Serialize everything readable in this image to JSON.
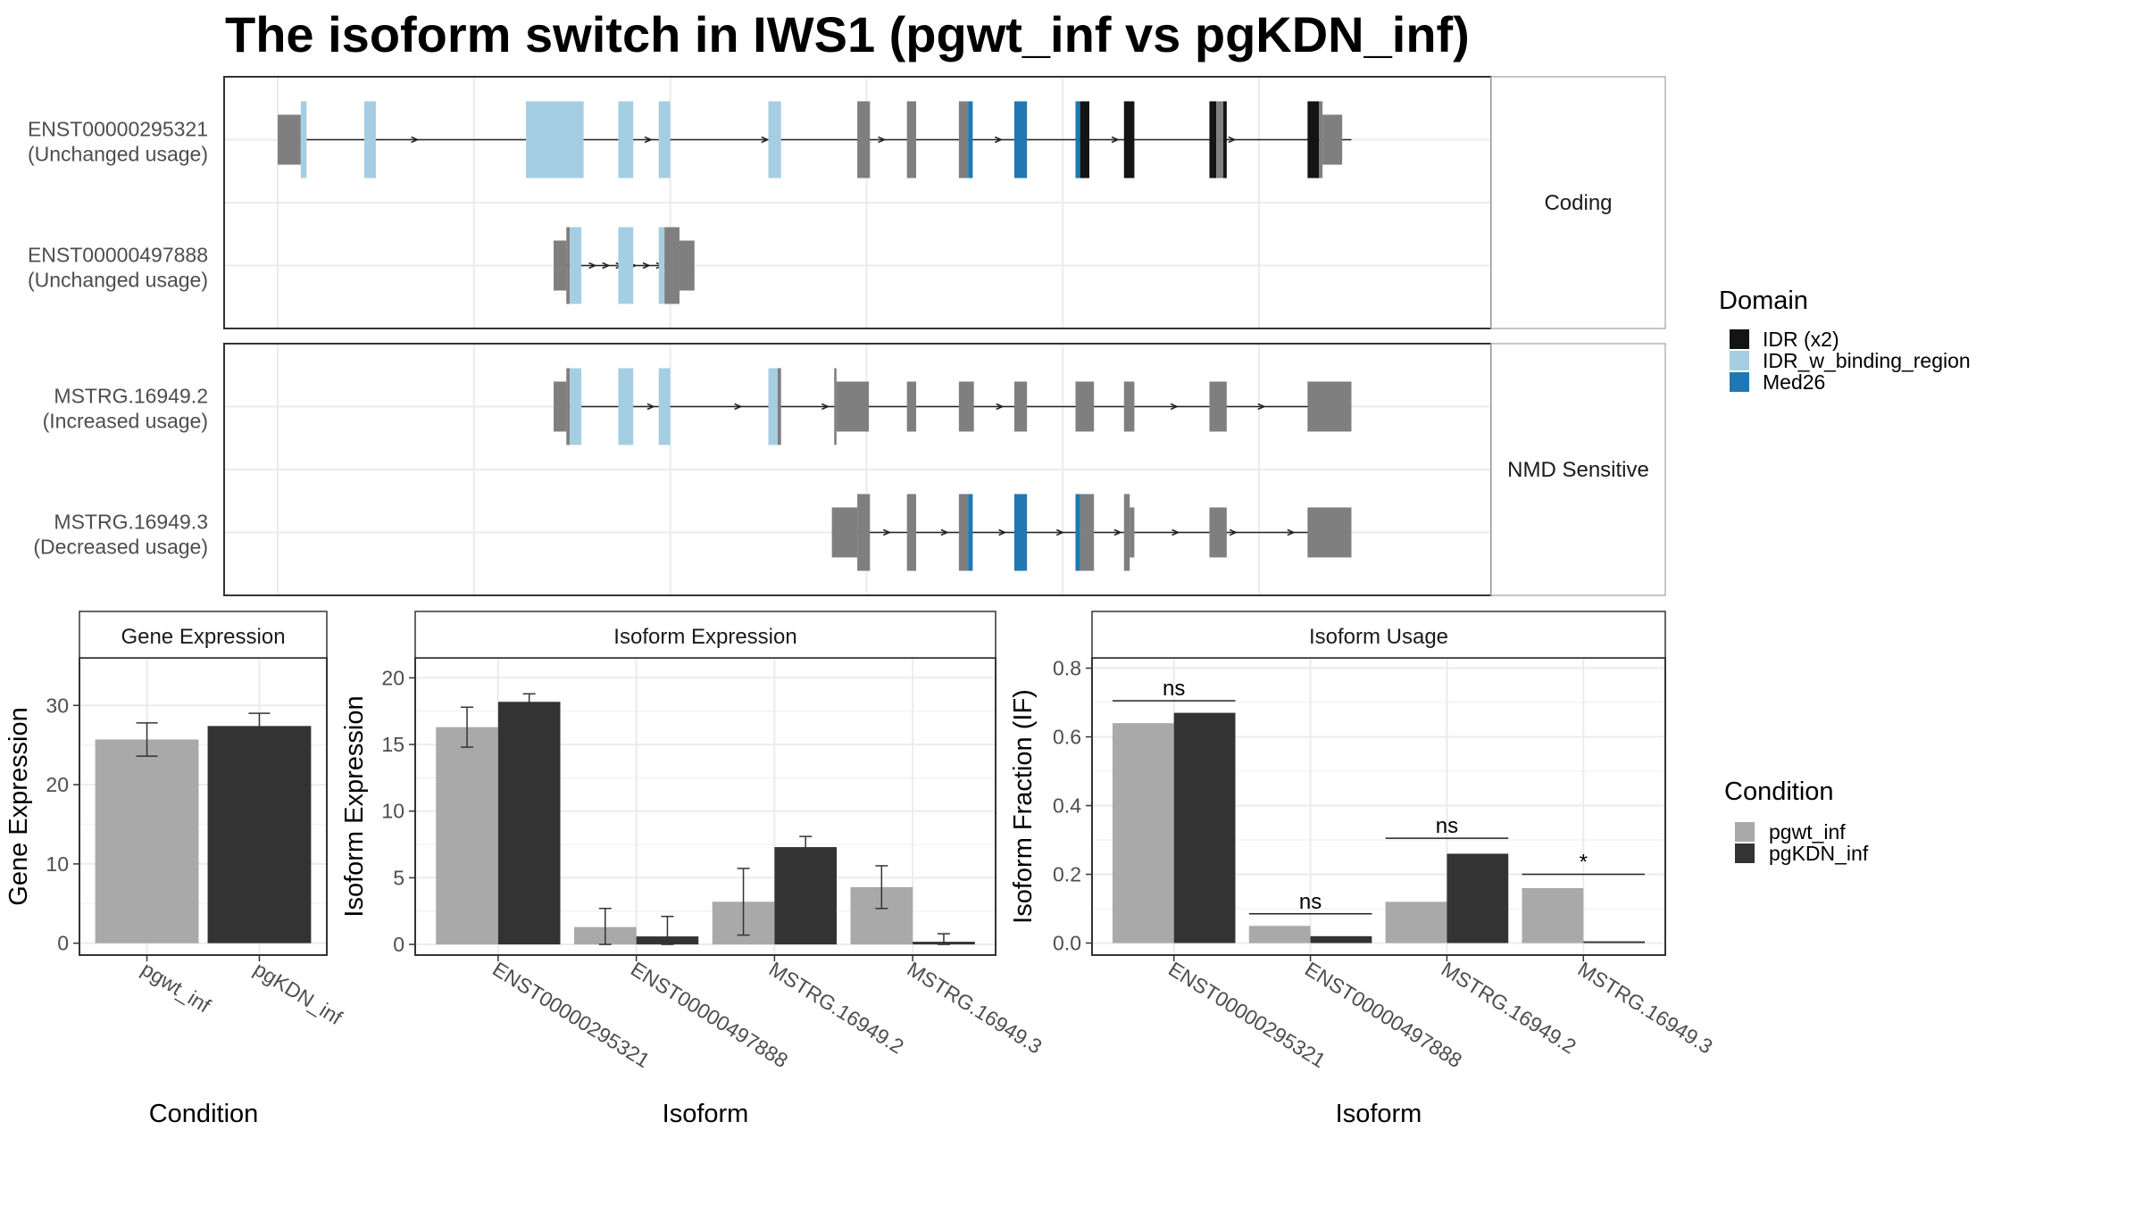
{
  "title": "The isoform switch in IWS1 (pgwt_inf vs pgKDN_inf)",
  "colors": {
    "utr": "#7f7f7f",
    "cds": "#7f7f7f",
    "IDR (x2)": "#141414",
    "IDR_w_binding_region": "#a6cee3",
    "Med26": "#1f78b4",
    "pgwt_inf": "#a9a9a9",
    "pgKDN_inf": "#333333",
    "panel_border": "#333333",
    "strip_border": "#b3b3b3",
    "grid": "#ebebeb"
  },
  "structure": {
    "facets": [
      {
        "label": "Coding",
        "transcripts": [
          {
            "name": "ENST00000295321",
            "usage": "(Unchanged usage)",
            "line": [
              0.02,
              0.93
            ],
            "blocks": [
              {
                "s": 0.0,
                "e": 0.02,
                "h": "u",
                "d": null
              },
              {
                "s": 0.02,
                "e": 0.025,
                "h": "c",
                "d": "IDR_w_binding_region"
              },
              {
                "s": 0.075,
                "e": 0.085,
                "h": "c",
                "d": "IDR_w_binding_region"
              },
              {
                "s": 0.215,
                "e": 0.265,
                "h": "c",
                "d": "IDR_w_binding_region"
              },
              {
                "s": 0.295,
                "e": 0.308,
                "h": "c",
                "d": "IDR_w_binding_region"
              },
              {
                "s": 0.33,
                "e": 0.34,
                "h": "c",
                "d": "IDR_w_binding_region"
              },
              {
                "s": 0.425,
                "e": 0.436,
                "h": "c",
                "d": "IDR_w_binding_region"
              },
              {
                "s": 0.502,
                "e": 0.513,
                "h": "c",
                "d": null
              },
              {
                "s": 0.545,
                "e": 0.553,
                "h": "c",
                "d": null
              },
              {
                "s": 0.59,
                "e": 0.598,
                "h": "c",
                "d": null
              },
              {
                "s": 0.598,
                "e": 0.602,
                "h": "c",
                "d": "Med26"
              },
              {
                "s": 0.638,
                "e": 0.649,
                "h": "c",
                "d": "Med26"
              },
              {
                "s": 0.691,
                "e": 0.695,
                "h": "c",
                "d": "Med26"
              },
              {
                "s": 0.695,
                "e": 0.703,
                "h": "c",
                "d": "IDR (x2)"
              },
              {
                "s": 0.733,
                "e": 0.742,
                "h": "c",
                "d": "IDR (x2)"
              },
              {
                "s": 0.807,
                "e": 0.813,
                "h": "c",
                "d": "IDR (x2)"
              },
              {
                "s": 0.813,
                "e": 0.819,
                "h": "c",
                "d": null
              },
              {
                "s": 0.819,
                "e": 0.822,
                "h": "c",
                "d": "IDR (x2)"
              },
              {
                "s": 0.892,
                "e": 0.902,
                "h": "c",
                "d": "IDR (x2)"
              },
              {
                "s": 0.902,
                "e": 0.905,
                "h": "c",
                "d": null
              },
              {
                "s": 0.905,
                "e": 0.922,
                "h": "u",
                "d": null
              }
            ]
          },
          {
            "name": "ENST00000497888",
            "usage": "(Unchanged usage)",
            "line": [
              0.24,
              0.345
            ],
            "blocks": [
              {
                "s": 0.239,
                "e": 0.25,
                "h": "u",
                "d": null
              },
              {
                "s": 0.25,
                "e": 0.253,
                "h": "c",
                "d": null
              },
              {
                "s": 0.253,
                "e": 0.263,
                "h": "c",
                "d": "IDR_w_binding_region"
              },
              {
                "s": 0.295,
                "e": 0.308,
                "h": "c",
                "d": "IDR_w_binding_region"
              },
              {
                "s": 0.33,
                "e": 0.335,
                "h": "c",
                "d": "IDR_w_binding_region"
              },
              {
                "s": 0.335,
                "e": 0.348,
                "h": "c",
                "d": null
              },
              {
                "s": 0.348,
                "e": 0.361,
                "h": "u",
                "d": null
              }
            ]
          }
        ]
      },
      {
        "label": "NMD Sensitive",
        "transcripts": [
          {
            "name": "MSTRG.16949.2",
            "usage": "(Increased usage)",
            "line": [
              0.25,
              0.93
            ],
            "blocks": [
              {
                "s": 0.239,
                "e": 0.25,
                "h": "u",
                "d": null
              },
              {
                "s": 0.25,
                "e": 0.253,
                "h": "c",
                "d": null
              },
              {
                "s": 0.253,
                "e": 0.263,
                "h": "c",
                "d": "IDR_w_binding_region"
              },
              {
                "s": 0.295,
                "e": 0.308,
                "h": "c",
                "d": "IDR_w_binding_region"
              },
              {
                "s": 0.33,
                "e": 0.34,
                "h": "c",
                "d": "IDR_w_binding_region"
              },
              {
                "s": 0.425,
                "e": 0.433,
                "h": "c",
                "d": "IDR_w_binding_region"
              },
              {
                "s": 0.433,
                "e": 0.436,
                "h": "c",
                "d": null
              },
              {
                "s": 0.482,
                "e": 0.484,
                "h": "c",
                "d": null
              },
              {
                "s": 0.484,
                "e": 0.512,
                "h": "u",
                "d": null
              },
              {
                "s": 0.545,
                "e": 0.553,
                "h": "u",
                "d": null
              },
              {
                "s": 0.59,
                "e": 0.603,
                "h": "u",
                "d": null
              },
              {
                "s": 0.638,
                "e": 0.649,
                "h": "u",
                "d": null
              },
              {
                "s": 0.691,
                "e": 0.707,
                "h": "u",
                "d": null
              },
              {
                "s": 0.733,
                "e": 0.742,
                "h": "u",
                "d": null
              },
              {
                "s": 0.807,
                "e": 0.822,
                "h": "u",
                "d": null
              },
              {
                "s": 0.892,
                "e": 0.93,
                "h": "u",
                "d": null
              }
            ]
          },
          {
            "name": "MSTRG.16949.3",
            "usage": "(Decreased usage)",
            "line": [
              0.48,
              0.93
            ],
            "blocks": [
              {
                "s": 0.48,
                "e": 0.502,
                "h": "u",
                "d": null
              },
              {
                "s": 0.502,
                "e": 0.513,
                "h": "c",
                "d": null
              },
              {
                "s": 0.545,
                "e": 0.553,
                "h": "c",
                "d": null
              },
              {
                "s": 0.59,
                "e": 0.598,
                "h": "c",
                "d": null
              },
              {
                "s": 0.598,
                "e": 0.602,
                "h": "c",
                "d": "Med26"
              },
              {
                "s": 0.638,
                "e": 0.649,
                "h": "c",
                "d": "Med26"
              },
              {
                "s": 0.691,
                "e": 0.695,
                "h": "c",
                "d": "Med26"
              },
              {
                "s": 0.695,
                "e": 0.707,
                "h": "c",
                "d": null
              },
              {
                "s": 0.733,
                "e": 0.738,
                "h": "c",
                "d": null
              },
              {
                "s": 0.738,
                "e": 0.742,
                "h": "u",
                "d": null
              },
              {
                "s": 0.807,
                "e": 0.822,
                "h": "u",
                "d": null
              },
              {
                "s": 0.892,
                "e": 0.93,
                "h": "u",
                "d": null
              }
            ]
          }
        ]
      }
    ],
    "domain_legend": {
      "title": "Domain",
      "entries": [
        "IDR (x2)",
        "IDR_w_binding_region",
        "Med26"
      ]
    }
  },
  "chart_data": [
    {
      "type": "bar",
      "title": "Gene Expression",
      "xlabel": "Condition",
      "ylabel": "Gene Expression",
      "categories": [
        "pgwt_inf",
        "pgKDN_inf"
      ],
      "values": [
        25.7,
        27.4
      ],
      "errors": [
        2.1,
        1.6
      ],
      "ylim": [
        -1.5,
        36
      ],
      "yticks": [
        0,
        10,
        20,
        30
      ]
    },
    {
      "type": "bar",
      "title": "Isoform Expression",
      "xlabel": "Isoform",
      "ylabel": "Isoform Expression",
      "categories": [
        "ENST00000295321",
        "ENST00000497888",
        "MSTRG.16949.2",
        "MSTRG.16949.3"
      ],
      "series": [
        {
          "name": "pgwt_inf",
          "values": [
            16.3,
            1.3,
            3.2,
            4.3
          ],
          "errors": [
            1.5,
            1.4,
            2.5,
            1.6
          ]
        },
        {
          "name": "pgKDN_inf",
          "values": [
            18.2,
            0.6,
            7.3,
            0.2
          ],
          "errors": [
            0.6,
            1.5,
            0.8,
            0.6
          ]
        }
      ],
      "ylim": [
        -0.8,
        21.5
      ],
      "yticks": [
        0,
        5,
        10,
        15,
        20
      ]
    },
    {
      "type": "bar",
      "title": "Isoform Usage",
      "xlabel": "Isoform",
      "ylabel": "Isoform Fraction (IF)",
      "categories": [
        "ENST00000295321",
        "ENST00000497888",
        "MSTRG.16949.2",
        "MSTRG.16949.3"
      ],
      "series": [
        {
          "name": "pgwt_inf",
          "values": [
            0.64,
            0.05,
            0.12,
            0.16
          ]
        },
        {
          "name": "pgKDN_inf",
          "values": [
            0.67,
            0.02,
            0.26,
            0.005
          ]
        }
      ],
      "significance": [
        "ns",
        "ns",
        "ns",
        "*"
      ],
      "sig_y": [
        0.705,
        0.085,
        0.305,
        0.2
      ],
      "ylim": [
        -0.035,
        0.83
      ],
      "yticks": [
        0.0,
        0.2,
        0.4,
        0.6,
        0.8
      ],
      "ytick_labels": [
        "0.0",
        "0.2",
        "0.4",
        "0.6",
        "0.8"
      ]
    }
  ],
  "condition_legend": {
    "title": "Condition",
    "entries": [
      "pgwt_inf",
      "pgKDN_inf"
    ]
  }
}
